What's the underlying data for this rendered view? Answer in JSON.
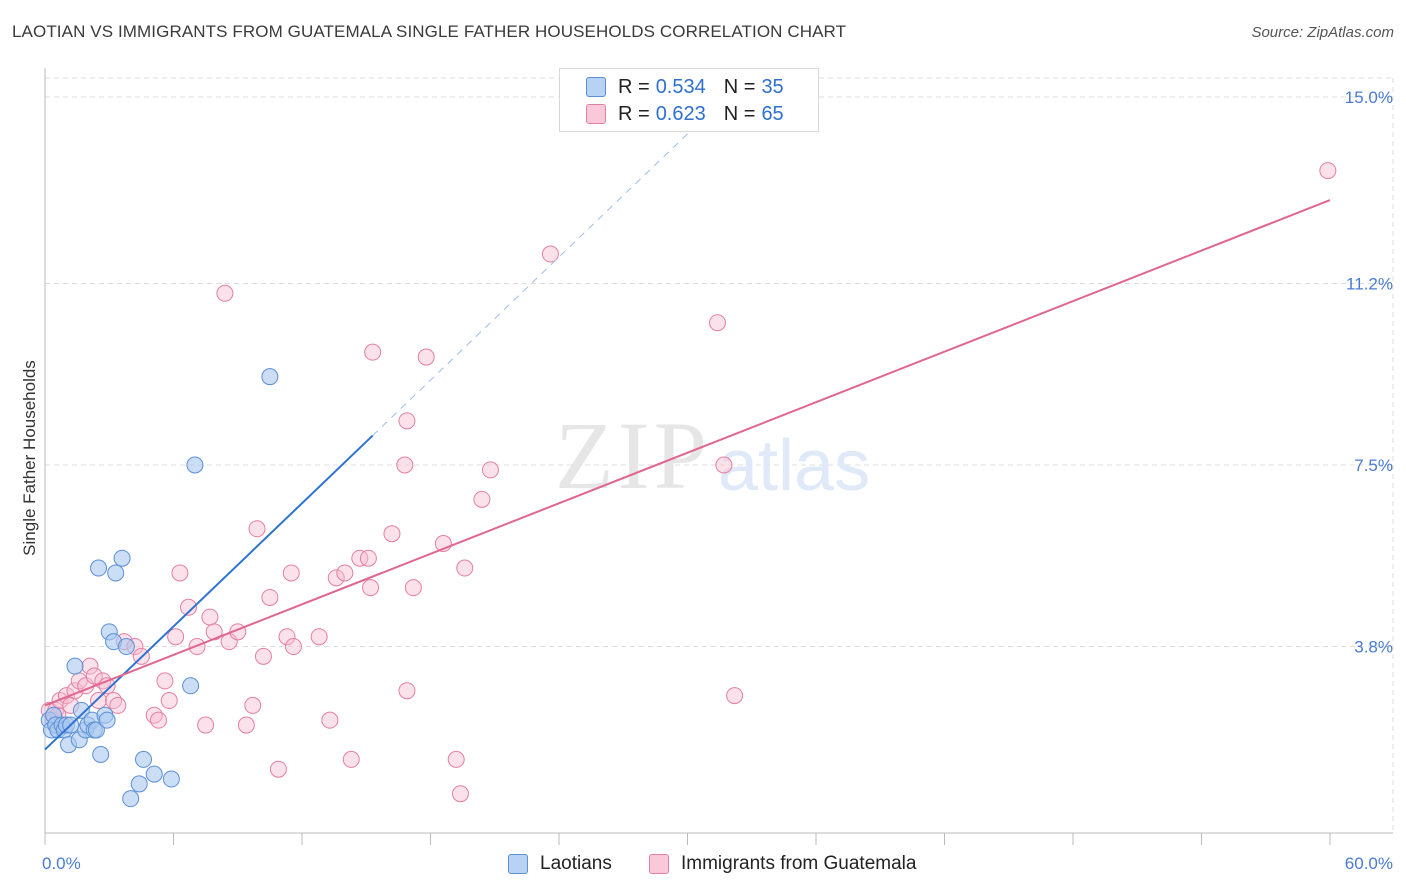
{
  "header": {
    "title": "LAOTIAN VS IMMIGRANTS FROM GUATEMALA SINGLE FATHER HOUSEHOLDS CORRELATION CHART",
    "source": "Source: ZipAtlas.com"
  },
  "watermark": {
    "zip": "ZIP",
    "atlas": "atlas"
  },
  "legend": {
    "rows": [
      {
        "r_label": "R =",
        "r_value": "0.534",
        "n_label": "N =",
        "n_value": "35"
      },
      {
        "r_label": "R =",
        "r_value": "0.623",
        "n_label": "N =",
        "n_value": "65"
      }
    ]
  },
  "bottom_legend": {
    "series1": "Laotians",
    "series2": "Immigrants from Guatemala"
  },
  "colors": {
    "laotian_fill": "#a9c8f0",
    "laotian_stroke": "#5b8fd6",
    "laotian_line": "#2e73d2",
    "guatemala_fill": "#f7bcd0",
    "guatemala_stroke": "#e57fa2",
    "guatemala_line": "#e06690",
    "tick": "#4a7bd0",
    "grid": "#dddddd"
  },
  "chart_data": {
    "type": "scatter",
    "title": "LAOTIAN VS IMMIGRANTS FROM GUATEMALA SINGLE FATHER HOUSEHOLDS CORRELATION CHART",
    "xlabel": "",
    "ylabel": "Single Father Households",
    "xlim": [
      0,
      60
    ],
    "ylim": [
      0,
      15.6
    ],
    "x_tick_labels": [
      "0.0%",
      "60.0%"
    ],
    "y_ticks": [
      3.8,
      7.5,
      11.2,
      15.0
    ],
    "y_tick_labels": [
      "3.8%",
      "7.5%",
      "11.2%",
      "15.0%"
    ],
    "grid": true,
    "legend_position": "top-center",
    "series": [
      {
        "name": "Laotians",
        "R": 0.534,
        "N": 35,
        "points": [
          [
            0.2,
            2.3
          ],
          [
            0.3,
            2.1
          ],
          [
            0.4,
            2.4
          ],
          [
            0.5,
            2.2
          ],
          [
            0.6,
            2.1
          ],
          [
            0.8,
            2.2
          ],
          [
            0.9,
            2.1
          ],
          [
            1.0,
            2.2
          ],
          [
            1.1,
            1.8
          ],
          [
            1.2,
            2.2
          ],
          [
            1.4,
            3.4
          ],
          [
            1.6,
            1.9
          ],
          [
            1.7,
            2.5
          ],
          [
            1.9,
            2.1
          ],
          [
            2.0,
            2.2
          ],
          [
            2.2,
            2.3
          ],
          [
            2.3,
            2.1
          ],
          [
            2.4,
            2.1
          ],
          [
            2.5,
            5.4
          ],
          [
            2.6,
            1.6
          ],
          [
            2.8,
            2.4
          ],
          [
            2.9,
            2.3
          ],
          [
            3.0,
            4.1
          ],
          [
            3.2,
            3.9
          ],
          [
            3.3,
            5.3
          ],
          [
            3.6,
            5.6
          ],
          [
            3.8,
            3.8
          ],
          [
            4.0,
            0.7
          ],
          [
            4.4,
            1.0
          ],
          [
            4.6,
            1.5
          ],
          [
            5.1,
            1.2
          ],
          [
            5.9,
            1.1
          ],
          [
            6.8,
            3.0
          ],
          [
            7.0,
            7.5
          ],
          [
            10.5,
            9.3
          ]
        ],
        "trend": {
          "x": [
            0,
            15.3
          ],
          "y": [
            1.7,
            8.1
          ],
          "dashed_extension_to_x": 30
        }
      },
      {
        "name": "Immigrants from Guatemala",
        "R": 0.623,
        "N": 65,
        "points": [
          [
            0.2,
            2.5
          ],
          [
            0.4,
            2.3
          ],
          [
            0.5,
            2.5
          ],
          [
            0.6,
            2.4
          ],
          [
            0.7,
            2.7
          ],
          [
            0.8,
            2.2
          ],
          [
            1.0,
            2.8
          ],
          [
            1.2,
            2.6
          ],
          [
            1.4,
            2.9
          ],
          [
            1.6,
            3.1
          ],
          [
            1.9,
            3.0
          ],
          [
            2.1,
            3.4
          ],
          [
            2.3,
            3.2
          ],
          [
            2.5,
            2.7
          ],
          [
            2.7,
            3.1
          ],
          [
            2.9,
            3.0
          ],
          [
            3.2,
            2.7
          ],
          [
            3.4,
            2.6
          ],
          [
            3.7,
            3.9
          ],
          [
            4.2,
            3.8
          ],
          [
            4.5,
            3.6
          ],
          [
            5.1,
            2.4
          ],
          [
            5.3,
            2.3
          ],
          [
            5.6,
            3.1
          ],
          [
            5.8,
            2.7
          ],
          [
            6.1,
            4.0
          ],
          [
            6.3,
            5.3
          ],
          [
            6.7,
            4.6
          ],
          [
            7.1,
            3.8
          ],
          [
            7.5,
            2.2
          ],
          [
            7.7,
            4.4
          ],
          [
            7.9,
            4.1
          ],
          [
            8.4,
            11.0
          ],
          [
            8.6,
            3.9
          ],
          [
            9.0,
            4.1
          ],
          [
            9.4,
            2.2
          ],
          [
            9.7,
            2.6
          ],
          [
            9.9,
            6.2
          ],
          [
            10.2,
            3.6
          ],
          [
            10.5,
            4.8
          ],
          [
            10.9,
            1.3
          ],
          [
            11.3,
            4.0
          ],
          [
            11.5,
            5.3
          ],
          [
            11.6,
            3.8
          ],
          [
            12.8,
            4.0
          ],
          [
            13.3,
            2.3
          ],
          [
            13.6,
            5.2
          ],
          [
            14.0,
            5.3
          ],
          [
            14.3,
            1.5
          ],
          [
            14.7,
            5.6
          ],
          [
            15.1,
            5.6
          ],
          [
            15.2,
            5.0
          ],
          [
            15.3,
            9.8
          ],
          [
            16.2,
            6.1
          ],
          [
            16.8,
            7.5
          ],
          [
            16.9,
            8.4
          ],
          [
            16.9,
            2.9
          ],
          [
            17.2,
            5.0
          ],
          [
            17.8,
            9.7
          ],
          [
            18.6,
            5.9
          ],
          [
            19.2,
            1.5
          ],
          [
            19.4,
            0.8
          ],
          [
            19.6,
            5.4
          ],
          [
            20.4,
            6.8
          ],
          [
            20.8,
            7.4
          ]
        ],
        "extra_points": [
          [
            23.6,
            11.8
          ],
          [
            31.4,
            10.4
          ],
          [
            31.7,
            7.5
          ],
          [
            32.2,
            2.8
          ],
          [
            59.9,
            13.5
          ]
        ],
        "trend": {
          "x": [
            0,
            60
          ],
          "y": [
            2.6,
            12.9
          ]
        }
      }
    ]
  }
}
